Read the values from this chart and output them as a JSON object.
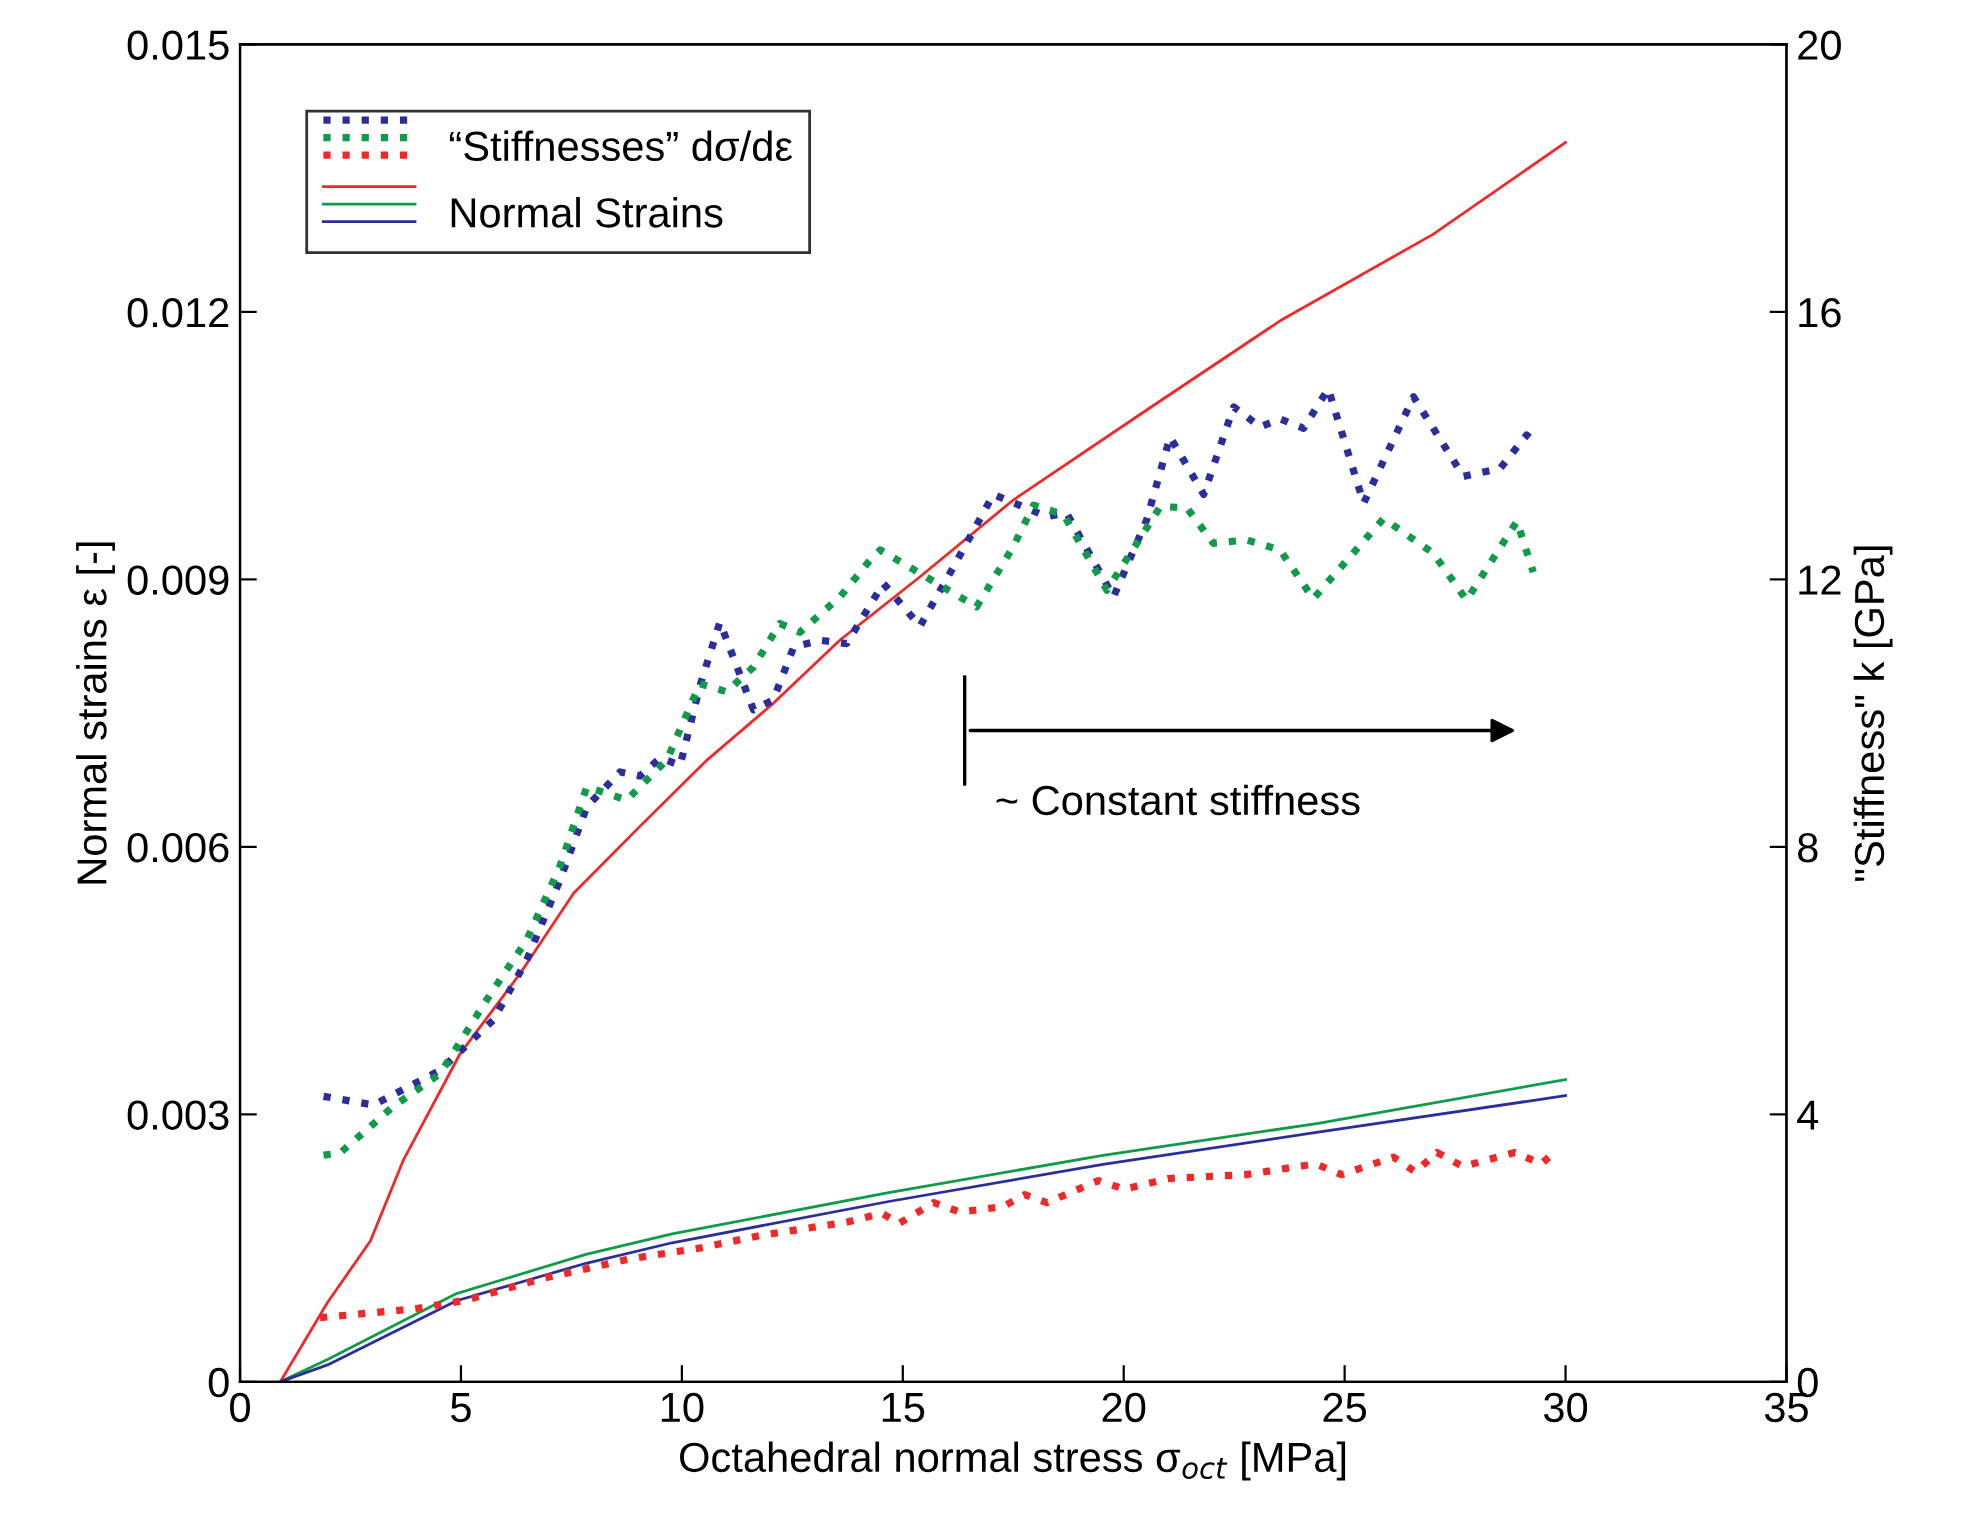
{
  "chart_data": {
    "type": "line",
    "xlabel": "Octahedral normal stress σ$_{oct}$ [MPa]",
    "ylabel": "Normal strains ε [-]",
    "y2label": "\"Stiffness\" k [GPa]",
    "xlim": [
      0,
      35
    ],
    "xticks": [
      0,
      5,
      10,
      15,
      20,
      25,
      30,
      35
    ],
    "ylim": [
      0,
      0.015
    ],
    "yticks": [
      0,
      0.003,
      0.006,
      0.009,
      0.012,
      0.015
    ],
    "y2lim": [
      0,
      20
    ],
    "y2ticks": [
      0,
      4,
      8,
      12,
      16,
      20
    ],
    "grid": false,
    "legend": "top left",
    "annotations": [
      "~ Constant stiffness"
    ],
    "series": [
      {
        "name": "“Stiffnesses” dσ/dε",
        "axis": "y2",
        "line_style": "dotted",
        "color": "#2b2e9a",
        "x": [
          1.89,
          3.02,
          4.53,
          5.73,
          6.49,
          7.24,
          7.85,
          8.6,
          9.05,
          9.51,
          9.96,
          10.41,
          10.86,
          11.62,
          12.07,
          12.53,
          13.13,
          13.73,
          14.56,
          15.39,
          16.15,
          17.05,
          18.26,
          18.71,
          19.77,
          20.52,
          21.05,
          21.81,
          22.49,
          23.09,
          23.54,
          24.07,
          24.63,
          25.43,
          26.56,
          27.69,
          28.52,
          29.12,
          29.35
        ],
        "values": [
          4.27,
          4.14,
          4.66,
          5.41,
          6.31,
          7.5,
          8.6,
          9.12,
          9.06,
          9.33,
          9.22,
          10.41,
          11.36,
          10.05,
          10.2,
          10.99,
          11.09,
          11.04,
          11.94,
          11.3,
          12.19,
          13.27,
          12.94,
          12.99,
          11.74,
          12.89,
          14.13,
          13.27,
          14.58,
          14.28,
          14.4,
          14.26,
          14.85,
          13.14,
          14.73,
          13.54,
          13.66,
          14.16,
          14.03
        ]
      },
      {
        "axis": "y2",
        "line_style": "dotted",
        "color": "#119a4a",
        "x": [
          1.89,
          2.26,
          3.47,
          4.53,
          5.58,
          6.49,
          7.24,
          7.85,
          8.75,
          9.66,
          10.41,
          11.01,
          11.62,
          12.22,
          12.67,
          13.58,
          14.26,
          14.49,
          15.39,
          16.67,
          17.5,
          17.96,
          18.64,
          19.62,
          20.83,
          21.43,
          22.03,
          22.78,
          23.54,
          24.29,
          25.88,
          27.01,
          27.76,
          28.9,
          29.27
        ],
        "values": [
          3.39,
          3.42,
          4.12,
          4.61,
          5.71,
          6.61,
          7.71,
          8.9,
          8.7,
          9.3,
          10.44,
          10.32,
          10.69,
          11.34,
          11.21,
          11.74,
          12.29,
          12.44,
          12.09,
          11.59,
          12.49,
          13.11,
          12.97,
          11.84,
          13.09,
          13.07,
          12.54,
          12.59,
          12.44,
          11.71,
          12.91,
          12.39,
          11.69,
          12.87,
          12.11
        ]
      },
      {
        "axis": "y2",
        "line_style": "dotted",
        "color": "#f02828",
        "x": [
          1.81,
          3.93,
          5.1,
          6.87,
          8.83,
          10.4,
          11.78,
          13.74,
          14.53,
          14.92,
          15.7,
          16.29,
          17.27,
          17.76,
          18.26,
          19.43,
          20.02,
          21.0,
          22.77,
          24.34,
          24.93,
          26.11,
          26.6,
          27.09,
          27.68,
          28.85,
          29.45,
          29.69
        ],
        "values": [
          0.96,
          1.09,
          1.22,
          1.55,
          1.84,
          2.0,
          2.19,
          2.39,
          2.52,
          2.37,
          2.68,
          2.54,
          2.62,
          2.8,
          2.68,
          3.01,
          2.88,
          3.04,
          3.1,
          3.26,
          3.1,
          3.36,
          3.14,
          3.43,
          3.22,
          3.43,
          3.26,
          3.4
        ]
      },
      {
        "name": "Normal Strains",
        "axis": "y",
        "line_style": "solid",
        "color": "#f02828",
        "x": [
          0.91,
          1.98,
          2.95,
          3.7,
          4.98,
          6.34,
          7.55,
          9.05,
          10.56,
          12.07,
          13.58,
          15.39,
          17.5,
          20.52,
          23.54,
          27.0,
          30.0
        ],
        "values": [
          0,
          0.00089,
          0.00158,
          0.00249,
          0.00368,
          0.00458,
          0.00548,
          0.00623,
          0.00697,
          0.00761,
          0.00832,
          0.00903,
          0.00989,
          0.0109,
          0.0119,
          0.01287,
          0.0139
        ]
      },
      {
        "axis": "y",
        "line_style": "solid",
        "color": "#119a4a",
        "x": [
          0.91,
          1.98,
          4.9,
          7.83,
          9.78,
          14.65,
          19.53,
          24.4,
          30.0
        ],
        "values": [
          0,
          0.00025,
          0.00099,
          0.00143,
          0.00166,
          0.00212,
          0.00254,
          0.0029,
          0.00339
        ]
      },
      {
        "axis": "y",
        "line_style": "solid",
        "color": "#2b2e9a",
        "x": [
          0.91,
          1.98,
          4.9,
          7.83,
          9.78,
          14.65,
          19.53,
          24.4,
          30.0
        ],
        "values": [
          0,
          0.00019,
          0.00091,
          0.00133,
          0.00156,
          0.00202,
          0.00244,
          0.0028,
          0.00321
        ]
      }
    ]
  }
}
